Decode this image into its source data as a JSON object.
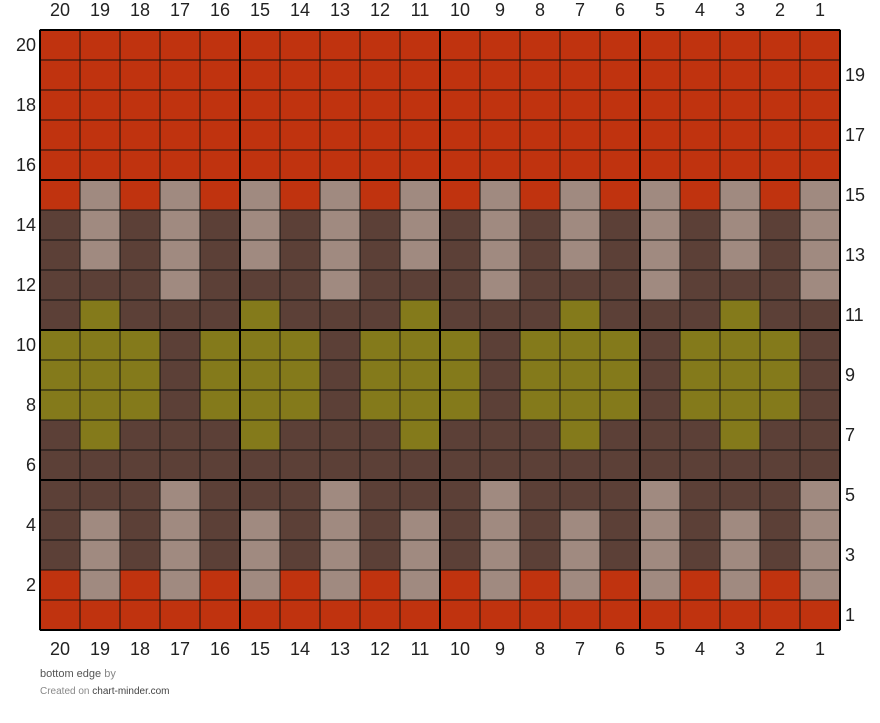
{
  "columns": [
    20,
    19,
    18,
    17,
    16,
    15,
    14,
    13,
    12,
    11,
    10,
    9,
    8,
    7,
    6,
    5,
    4,
    3,
    2,
    1
  ],
  "palette": {
    "R": "#c0330f",
    "T": "#a08a80",
    "D": "#5c4037",
    "O": "#847a1b"
  },
  "rows": [
    {
      "number": 20,
      "cells": "RRRRRRRRRRRRRRRRRRRR"
    },
    {
      "number": 19,
      "cells": "RRRRRRRRRRRRRRRRRRRR"
    },
    {
      "number": 18,
      "cells": "RRRRRRRRRRRRRRRRRRRR"
    },
    {
      "number": 17,
      "cells": "RRRRRRRRRRRRRRRRRRRR"
    },
    {
      "number": 16,
      "cells": "RRRRRRRRRRRRRRRRRRRR"
    },
    {
      "number": 15,
      "cells": "RTRTRTRTRTRTRTRTRTRT"
    },
    {
      "number": 14,
      "cells": "DTDTDTDTDTDTDTDTDTDT"
    },
    {
      "number": 13,
      "cells": "DTDTDTDTDTDTDTDTDTDT"
    },
    {
      "number": 12,
      "cells": "DDDTDDDTDDDTDDDTDDDT"
    },
    {
      "number": 11,
      "cells": "DODDDODDDODDDODDDODD"
    },
    {
      "number": 10,
      "cells": "OOODOOODOOODOOODOOOD"
    },
    {
      "number": 9,
      "cells": "OOODOOODOOODOOODOOOD"
    },
    {
      "number": 8,
      "cells": "OOODOOODOOODOOODOOOD"
    },
    {
      "number": 7,
      "cells": "DODDDODDDODDDODDDODD"
    },
    {
      "number": 6,
      "cells": "DDDDDDDDDDDDDDDDDDDD"
    },
    {
      "number": 5,
      "cells": "DDDTDDDTDDDTDDDTDDDT"
    },
    {
      "number": 4,
      "cells": "DTDTDTDTDTDTDTDTDTDT"
    },
    {
      "number": 3,
      "cells": "DTDTDTDTDTDTDTDTDTDT"
    },
    {
      "number": 2,
      "cells": "RTRTRTRTRTRTRTRTRTRT"
    },
    {
      "number": 1,
      "cells": "RRRRRRRRRRRRRRRRRRRR"
    }
  ],
  "footer": {
    "caption": "bottom edge",
    "by": "by",
    "credit_prefix": "Created on",
    "credit_site": "chart-minder.com"
  }
}
